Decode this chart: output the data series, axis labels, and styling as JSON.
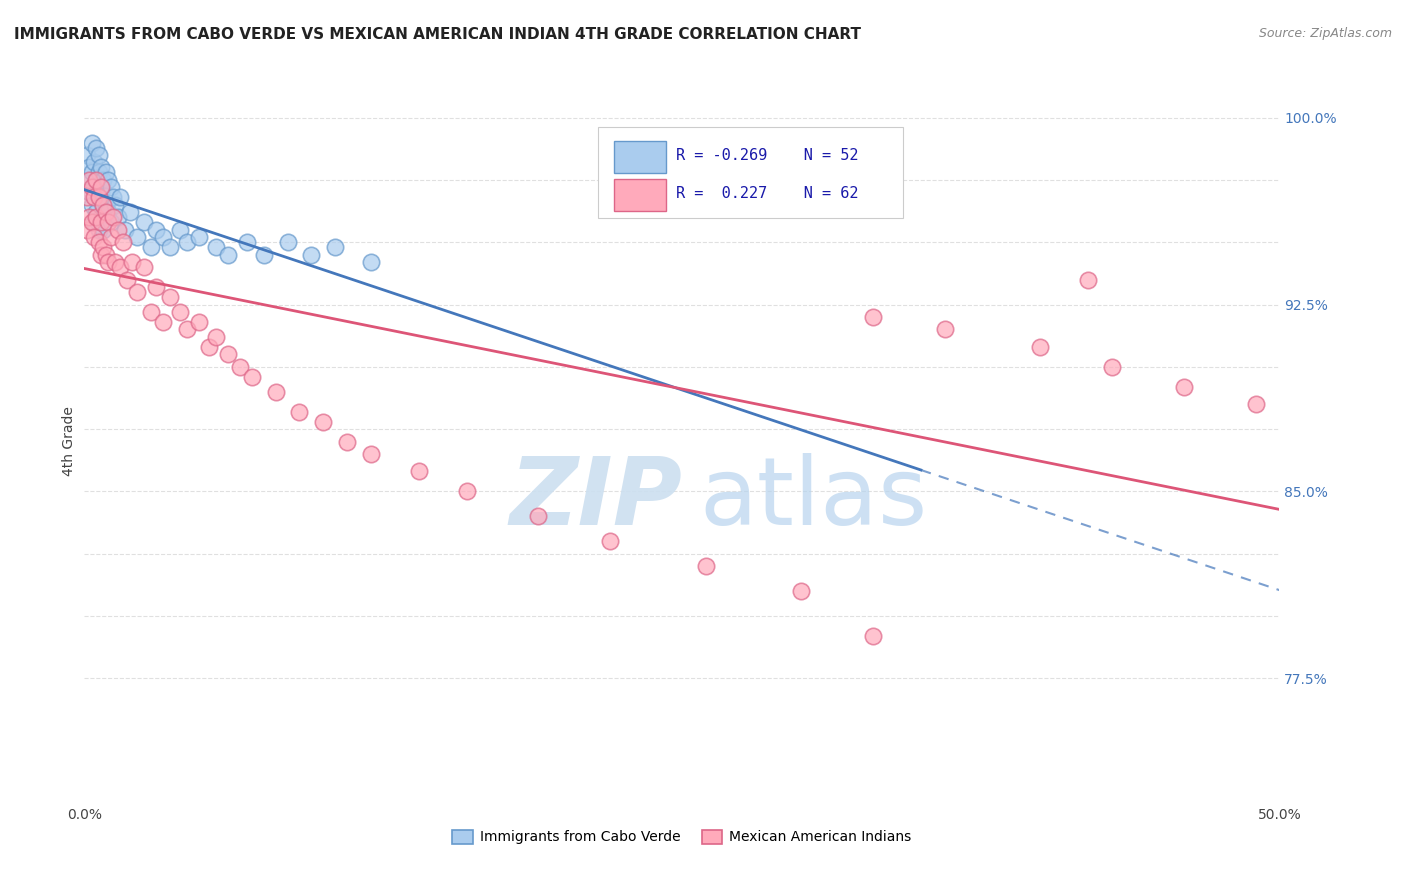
{
  "title": "IMMIGRANTS FROM CABO VERDE VS MEXICAN AMERICAN INDIAN 4TH GRADE CORRELATION CHART",
  "source": "Source: ZipAtlas.com",
  "ylabel": "4th Grade",
  "xlim": [
    0.0,
    0.5
  ],
  "ylim": [
    0.725,
    1.015
  ],
  "ytick_shown": [
    0.775,
    0.85,
    0.925,
    1.0
  ],
  "ytick_shown_labels": [
    "77.5%",
    "85.0%",
    "92.5%",
    "100.0%"
  ],
  "grid_color": "#e0e0e0",
  "bg_color": "#ffffff",
  "cabo_verde_face": "#aaccee",
  "cabo_verde_edge": "#6699cc",
  "mexican_ai_face": "#ffaabb",
  "mexican_ai_edge": "#dd6688",
  "cabo_verde_R": -0.269,
  "cabo_verde_N": 52,
  "mexican_ai_R": 0.227,
  "mexican_ai_N": 62,
  "cabo_verde_line_color": "#4477bb",
  "mexican_ai_line_color": "#dd5577",
  "cabo_verde_x": [
    0.001,
    0.001,
    0.002,
    0.002,
    0.003,
    0.003,
    0.003,
    0.004,
    0.004,
    0.004,
    0.005,
    0.005,
    0.005,
    0.006,
    0.006,
    0.006,
    0.006,
    0.007,
    0.007,
    0.007,
    0.008,
    0.008,
    0.008,
    0.009,
    0.009,
    0.01,
    0.01,
    0.011,
    0.011,
    0.012,
    0.013,
    0.014,
    0.015,
    0.017,
    0.019,
    0.022,
    0.025,
    0.028,
    0.03,
    0.033,
    0.036,
    0.04,
    0.043,
    0.048,
    0.055,
    0.06,
    0.068,
    0.075,
    0.085,
    0.095,
    0.105,
    0.12
  ],
  "cabo_verde_y": [
    0.985,
    0.975,
    0.98,
    0.97,
    0.99,
    0.978,
    0.965,
    0.982,
    0.972,
    0.958,
    0.988,
    0.975,
    0.962,
    0.985,
    0.978,
    0.968,
    0.955,
    0.98,
    0.97,
    0.96,
    0.975,
    0.965,
    0.955,
    0.978,
    0.965,
    0.975,
    0.962,
    0.972,
    0.958,
    0.968,
    0.965,
    0.96,
    0.968,
    0.955,
    0.962,
    0.952,
    0.958,
    0.948,
    0.955,
    0.952,
    0.948,
    0.955,
    0.95,
    0.952,
    0.948,
    0.945,
    0.95,
    0.945,
    0.95,
    0.945,
    0.948,
    0.942
  ],
  "mexican_ai_x": [
    0.001,
    0.001,
    0.002,
    0.002,
    0.003,
    0.003,
    0.004,
    0.004,
    0.005,
    0.005,
    0.006,
    0.006,
    0.007,
    0.007,
    0.007,
    0.008,
    0.008,
    0.009,
    0.009,
    0.01,
    0.01,
    0.011,
    0.012,
    0.013,
    0.014,
    0.015,
    0.016,
    0.018,
    0.02,
    0.022,
    0.025,
    0.028,
    0.03,
    0.033,
    0.036,
    0.04,
    0.043,
    0.048,
    0.052,
    0.055,
    0.06,
    0.065,
    0.07,
    0.08,
    0.09,
    0.1,
    0.11,
    0.12,
    0.14,
    0.16,
    0.19,
    0.22,
    0.26,
    0.3,
    0.33,
    0.36,
    0.4,
    0.43,
    0.46,
    0.49,
    0.33,
    0.42
  ],
  "mexican_ai_y": [
    0.968,
    0.955,
    0.975,
    0.96,
    0.972,
    0.958,
    0.968,
    0.952,
    0.975,
    0.96,
    0.968,
    0.95,
    0.972,
    0.958,
    0.945,
    0.965,
    0.948,
    0.962,
    0.945,
    0.958,
    0.942,
    0.952,
    0.96,
    0.942,
    0.955,
    0.94,
    0.95,
    0.935,
    0.942,
    0.93,
    0.94,
    0.922,
    0.932,
    0.918,
    0.928,
    0.922,
    0.915,
    0.918,
    0.908,
    0.912,
    0.905,
    0.9,
    0.896,
    0.89,
    0.882,
    0.878,
    0.87,
    0.865,
    0.858,
    0.85,
    0.84,
    0.83,
    0.82,
    0.81,
    0.92,
    0.915,
    0.908,
    0.9,
    0.892,
    0.885,
    0.792,
    0.935
  ]
}
